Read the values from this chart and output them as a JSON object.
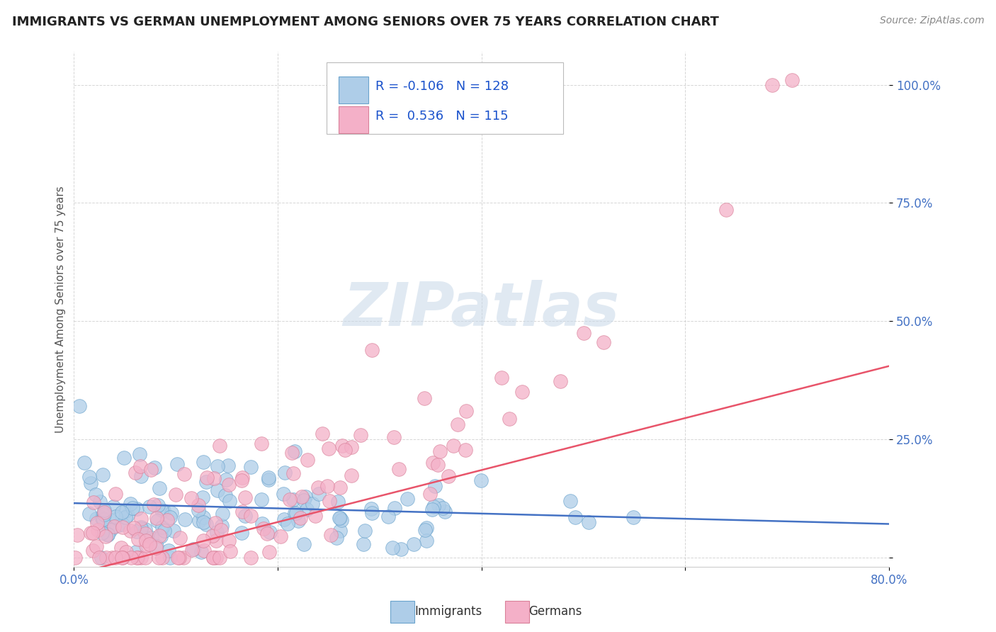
{
  "title": "IMMIGRANTS VS GERMAN UNEMPLOYMENT AMONG SENIORS OVER 75 YEARS CORRELATION CHART",
  "source": "Source: ZipAtlas.com",
  "ylabel": "Unemployment Among Seniors over 75 years",
  "xlim": [
    0.0,
    0.8
  ],
  "ylim": [
    -0.02,
    1.07
  ],
  "xticks": [
    0.0,
    0.2,
    0.4,
    0.6,
    0.8
  ],
  "xticklabels": [
    "0.0%",
    "",
    "",
    "",
    "80.0%"
  ],
  "ytick_labels_right": [
    "100.0%",
    "75.0%",
    "50.0%",
    "25.0%",
    ""
  ],
  "ytick_values_right": [
    1.0,
    0.75,
    0.5,
    0.25,
    0.0
  ],
  "legend_imm_R": "-0.106",
  "legend_imm_N": "128",
  "legend_ger_R": "0.536",
  "legend_ger_N": "115",
  "imm_color": "#aecde8",
  "imm_edge": "#6aa3cc",
  "ger_color": "#f4b0c8",
  "ger_edge": "#d98099",
  "trend_imm_color": "#4472C4",
  "trend_ger_color": "#E8546A",
  "trend_imm_slope": -0.055,
  "trend_imm_intercept": 0.115,
  "trend_ger_slope": 0.55,
  "trend_ger_intercept": -0.035,
  "watermark_text": "ZIPatlas",
  "watermark_color": "#c8d8e8",
  "background_color": "#ffffff",
  "grid_color": "#cccccc",
  "title_color": "#222222",
  "source_color": "#888888",
  "tick_color": "#4472C4",
  "ylabel_color": "#555555"
}
